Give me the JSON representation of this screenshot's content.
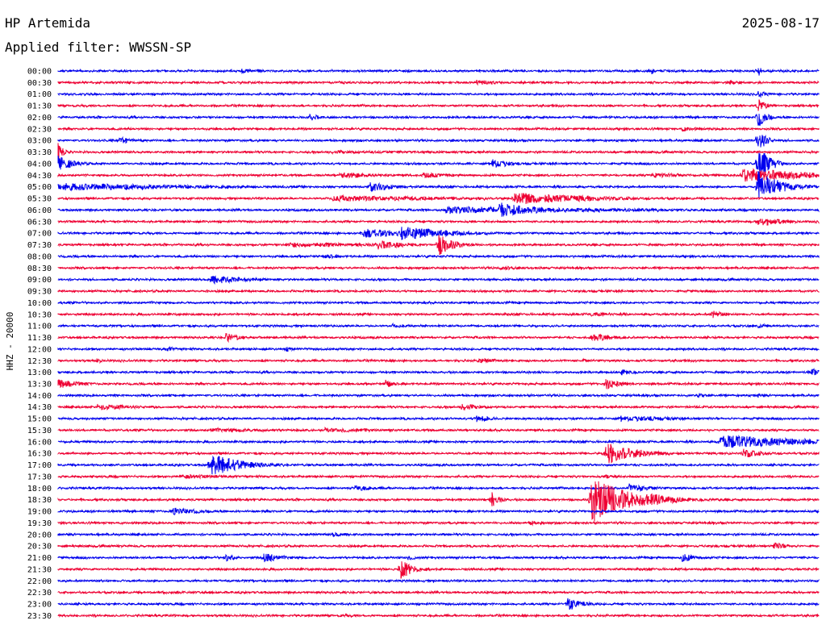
{
  "header": {
    "station": "HP Artemida",
    "date": "2025-08-17",
    "filter_label": "Applied filter: WWSSN-SP"
  },
  "chart_data": {
    "type": "helicorder",
    "ylabel": "HHZ - 20000",
    "trace_colors": [
      "#0000ee",
      "#ee0033"
    ],
    "rows": [
      {
        "label": "00:00",
        "events": [
          {
            "t": 0.24,
            "amp": 3,
            "dur": 0.025
          },
          {
            "t": 0.78,
            "amp": 5,
            "dur": 0.003
          },
          {
            "t": 0.92,
            "amp": 9,
            "dur": 0.003
          }
        ]
      },
      {
        "label": "00:30",
        "events": [
          {
            "t": 0.55,
            "amp": 4,
            "dur": 0.03
          },
          {
            "t": 0.88,
            "amp": 3,
            "dur": 0.03
          }
        ]
      },
      {
        "label": "01:00",
        "events": [
          {
            "t": 0.92,
            "amp": 4,
            "dur": 0.02
          }
        ]
      },
      {
        "label": "01:30",
        "events": [
          {
            "t": 0.92,
            "amp": 10,
            "dur": 0.01
          }
        ]
      },
      {
        "label": "02:00",
        "events": [
          {
            "t": 0.33,
            "amp": 5,
            "dur": 0.015
          },
          {
            "t": 0.92,
            "amp": 14,
            "dur": 0.01
          }
        ]
      },
      {
        "label": "02:30",
        "events": [
          {
            "t": 0.82,
            "amp": 3,
            "dur": 0.04
          }
        ]
      },
      {
        "label": "03:00",
        "events": [
          {
            "t": 0.08,
            "amp": 5,
            "dur": 0.02
          },
          {
            "t": 0.92,
            "amp": 16,
            "dur": 0.01
          }
        ]
      },
      {
        "label": "03:30",
        "events": [
          {
            "t": 0.0,
            "amp": 20,
            "dur": 0.005
          },
          {
            "t": 0.36,
            "amp": 2,
            "dur": 0.25
          }
        ]
      },
      {
        "label": "04:00",
        "events": [
          {
            "t": 0.0,
            "amp": 10,
            "dur": 0.02
          },
          {
            "t": 0.57,
            "amp": 8,
            "dur": 0.02
          },
          {
            "t": 0.92,
            "amp": 24,
            "dur": 0.015
          }
        ]
      },
      {
        "label": "04:30",
        "events": [
          {
            "t": 0.37,
            "amp": 4,
            "dur": 0.06
          },
          {
            "t": 0.48,
            "amp": 4,
            "dur": 0.03
          },
          {
            "t": 0.78,
            "amp": 3,
            "dur": 0.08
          },
          {
            "t": 0.9,
            "amp": 9,
            "dur": 0.1
          }
        ]
      },
      {
        "label": "05:00",
        "events": [
          {
            "t": 0.0,
            "amp": 5,
            "dur": 0.2
          },
          {
            "t": 0.41,
            "amp": 6,
            "dur": 0.04
          },
          {
            "t": 0.92,
            "amp": 20,
            "dur": 0.03
          }
        ]
      },
      {
        "label": "05:30",
        "events": [
          {
            "t": 0.36,
            "amp": 4,
            "dur": 0.2
          },
          {
            "t": 0.6,
            "amp": 8,
            "dur": 0.1
          }
        ]
      },
      {
        "label": "06:00",
        "events": [
          {
            "t": 0.51,
            "amp": 5,
            "dur": 0.25
          },
          {
            "t": 0.58,
            "amp": 10,
            "dur": 0.05
          }
        ]
      },
      {
        "label": "06:30",
        "events": [
          {
            "t": 0.92,
            "amp": 6,
            "dur": 0.04
          }
        ]
      },
      {
        "label": "07:00",
        "events": [
          {
            "t": 0.4,
            "amp": 6,
            "dur": 0.08
          },
          {
            "t": 0.45,
            "amp": 9,
            "dur": 0.07
          }
        ]
      },
      {
        "label": "07:30",
        "events": [
          {
            "t": 0.3,
            "amp": 3,
            "dur": 0.2
          },
          {
            "t": 0.42,
            "amp": 6,
            "dur": 0.04
          },
          {
            "t": 0.5,
            "amp": 14,
            "dur": 0.02
          }
        ]
      },
      {
        "label": "08:00",
        "events": [
          {
            "t": 0.35,
            "amp": 3,
            "dur": 0.03
          }
        ]
      },
      {
        "label": "08:30",
        "events": [
          {
            "t": 0.58,
            "amp": 3,
            "dur": 0.03
          }
        ]
      },
      {
        "label": "09:00",
        "events": [
          {
            "t": 0.2,
            "amp": 6,
            "dur": 0.05
          }
        ]
      },
      {
        "label": "09:30",
        "events": [
          {
            "t": 0.92,
            "amp": 3,
            "dur": 0.01
          }
        ]
      },
      {
        "label": "10:00",
        "events": [
          {
            "t": 0.12,
            "amp": 2,
            "dur": 0.03
          }
        ]
      },
      {
        "label": "10:30",
        "events": [
          {
            "t": 0.7,
            "amp": 3,
            "dur": 0.03
          },
          {
            "t": 0.86,
            "amp": 5,
            "dur": 0.02
          }
        ]
      },
      {
        "label": "11:00",
        "events": [
          {
            "t": 0.44,
            "amp": 3,
            "dur": 0.02
          },
          {
            "t": 0.92,
            "amp": 3,
            "dur": 0.02
          }
        ]
      },
      {
        "label": "11:30",
        "events": [
          {
            "t": 0.22,
            "amp": 6,
            "dur": 0.02
          },
          {
            "t": 0.7,
            "amp": 6,
            "dur": 0.03
          }
        ]
      },
      {
        "label": "12:00",
        "events": [
          {
            "t": 0.14,
            "amp": 3,
            "dur": 0.03
          },
          {
            "t": 0.3,
            "amp": 3,
            "dur": 0.02
          }
        ]
      },
      {
        "label": "12:30",
        "events": [
          {
            "t": 0.05,
            "amp": 4,
            "dur": 0.01
          },
          {
            "t": 0.55,
            "amp": 3,
            "dur": 0.04
          },
          {
            "t": 0.69,
            "amp": 3,
            "dur": 0.01
          }
        ]
      },
      {
        "label": "13:00",
        "events": [
          {
            "t": 0.74,
            "amp": 4,
            "dur": 0.02
          },
          {
            "t": 0.99,
            "amp": 6,
            "dur": 0.01
          }
        ]
      },
      {
        "label": "13:30",
        "events": [
          {
            "t": 0.0,
            "amp": 6,
            "dur": 0.03
          },
          {
            "t": 0.43,
            "amp": 7,
            "dur": 0.01
          },
          {
            "t": 0.72,
            "amp": 7,
            "dur": 0.02
          }
        ]
      },
      {
        "label": "14:00",
        "events": [
          {
            "t": 0.84,
            "amp": 4,
            "dur": 0.01
          },
          {
            "t": 0.92,
            "amp": 3,
            "dur": 0.01
          }
        ]
      },
      {
        "label": "14:30",
        "events": [
          {
            "t": 0.05,
            "amp": 4,
            "dur": 0.06
          },
          {
            "t": 0.53,
            "amp": 4,
            "dur": 0.04
          }
        ]
      },
      {
        "label": "15:00",
        "events": [
          {
            "t": 0.55,
            "amp": 5,
            "dur": 0.02
          },
          {
            "t": 0.74,
            "amp": 4,
            "dur": 0.08
          }
        ]
      },
      {
        "label": "15:30",
        "events": [
          {
            "t": 0.2,
            "amp": 3,
            "dur": 0.1
          },
          {
            "t": 0.35,
            "amp": 3,
            "dur": 0.1
          }
        ]
      },
      {
        "label": "16:00",
        "events": [
          {
            "t": 0.87,
            "amp": 9,
            "dur": 0.12
          }
        ]
      },
      {
        "label": "16:30",
        "events": [
          {
            "t": 0.72,
            "amp": 14,
            "dur": 0.04
          },
          {
            "t": 0.9,
            "amp": 6,
            "dur": 0.03
          }
        ]
      },
      {
        "label": "17:00",
        "events": [
          {
            "t": 0.2,
            "amp": 15,
            "dur": 0.04
          }
        ]
      },
      {
        "label": "17:30",
        "events": [
          {
            "t": 0.16,
            "amp": 3,
            "dur": 0.09
          },
          {
            "t": 0.72,
            "amp": 3,
            "dur": 0.02
          }
        ]
      },
      {
        "label": "18:00",
        "events": [
          {
            "t": 0.39,
            "amp": 4,
            "dur": 0.03
          },
          {
            "t": 0.75,
            "amp": 6,
            "dur": 0.03
          }
        ]
      },
      {
        "label": "18:30",
        "events": [
          {
            "t": 0.57,
            "amp": 10,
            "dur": 0.01
          },
          {
            "t": 0.7,
            "amp": 30,
            "dur": 0.05
          },
          {
            "t": 0.78,
            "amp": 8,
            "dur": 0.04
          }
        ]
      },
      {
        "label": "19:00",
        "events": [
          {
            "t": 0.15,
            "amp": 5,
            "dur": 0.04
          }
        ]
      },
      {
        "label": "19:30",
        "events": [
          {
            "t": 0.62,
            "amp": 3,
            "dur": 0.02
          }
        ]
      },
      {
        "label": "20:00",
        "events": [
          {
            "t": 0.36,
            "amp": 3,
            "dur": 0.03
          }
        ]
      },
      {
        "label": "20:30",
        "events": [
          {
            "t": 0.94,
            "amp": 5,
            "dur": 0.02
          }
        ]
      },
      {
        "label": "21:00",
        "events": [
          {
            "t": 0.22,
            "amp": 7,
            "dur": 0.01
          },
          {
            "t": 0.27,
            "amp": 6,
            "dur": 0.03
          },
          {
            "t": 0.46,
            "amp": 3,
            "dur": 0.02
          },
          {
            "t": 0.82,
            "amp": 6,
            "dur": 0.02
          }
        ]
      },
      {
        "label": "21:30",
        "events": [
          {
            "t": 0.45,
            "amp": 14,
            "dur": 0.015
          }
        ]
      },
      {
        "label": "22:00",
        "events": []
      },
      {
        "label": "22:30",
        "events": [
          {
            "t": 0.13,
            "amp": 2,
            "dur": 0.1
          }
        ]
      },
      {
        "label": "23:00",
        "events": [
          {
            "t": 0.67,
            "amp": 9,
            "dur": 0.02
          }
        ]
      },
      {
        "label": "23:30",
        "events": [
          {
            "t": 0.37,
            "amp": 2,
            "dur": 0.03
          }
        ]
      }
    ]
  }
}
